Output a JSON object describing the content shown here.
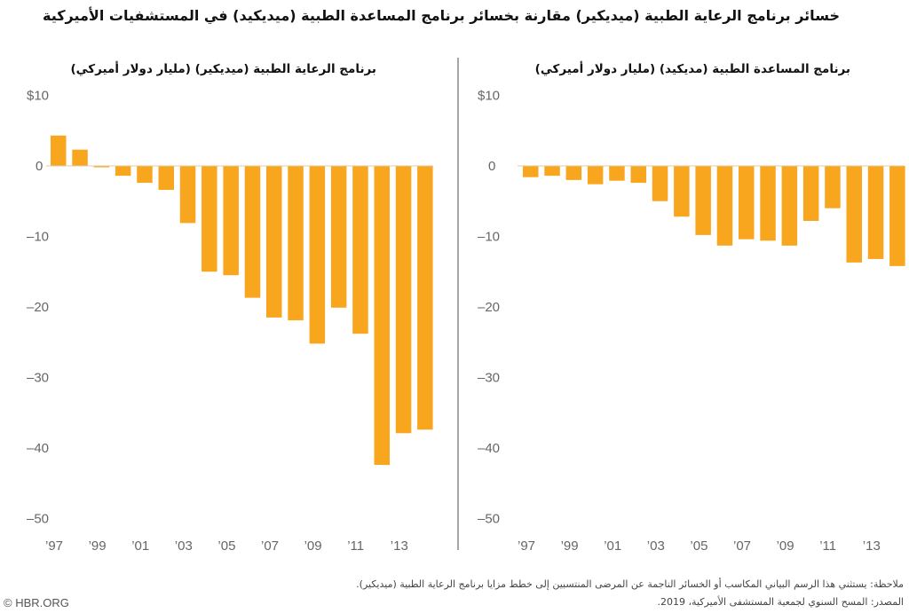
{
  "title": "خسائر برنامج الرعاية الطبية (ميديكير) مقارنة بخسائر برنامج المساعدة الطبية (ميديكيد) في المستشفيات الأميركية",
  "note": "ملاحظة: يستثني هذا الرسم البياني المكاسب أو الخسائر الناجمة عن المرضى المنتسبين إلى خطط مزايا برنامج الرعاية الطبية (ميديكير).",
  "source": "المصدر: المسح السنوي لجمعية المستشفى الأميركية، 2019.",
  "logo": "© HBR.ORG",
  "colors": {
    "bar": "#F9A61F",
    "divider": "#888888"
  },
  "chart_data": [
    {
      "type": "bar",
      "title": "برنامج الرعاية الطبية (ميديكير) (مليار دولار أميركي)",
      "categories": [
        "1997",
        "1998",
        "1999",
        "2000",
        "2001",
        "2002",
        "2003",
        "2004",
        "2005",
        "2006",
        "2007",
        "2008",
        "2009",
        "2010",
        "2011",
        "2012",
        "2013",
        "2014"
      ],
      "values": [
        4.3,
        2.3,
        -0.2,
        -1.4,
        -2.4,
        -3.4,
        -8.1,
        -15.0,
        -15.5,
        -18.7,
        -21.5,
        -21.9,
        -25.2,
        -20.1,
        -23.8,
        -42.4,
        -37.9,
        -37.4
      ],
      "xtick_labels": [
        "’97",
        "’99",
        "’01",
        "’03",
        "’05",
        "’07",
        "’09",
        "’11",
        "’13"
      ],
      "ytick_labels": [
        "$10",
        "0",
        "–10",
        "–20",
        "–30",
        "–40",
        "–50"
      ],
      "yticks": [
        10,
        0,
        -10,
        -20,
        -30,
        -40,
        -50
      ],
      "ylim": [
        -50,
        10
      ]
    },
    {
      "type": "bar",
      "title": "برنامج المساعدة الطبية (مديكيد) (مليار دولار أميركي)",
      "categories": [
        "1997",
        "1998",
        "1999",
        "2000",
        "2001",
        "2002",
        "2003",
        "2004",
        "2005",
        "2006",
        "2007",
        "2008",
        "2009",
        "2010",
        "2011",
        "2012",
        "2013",
        "2014"
      ],
      "values": [
        -1.6,
        -1.4,
        -2.0,
        -2.6,
        -2.1,
        -2.4,
        -5.0,
        -7.2,
        -9.8,
        -11.3,
        -10.4,
        -10.6,
        -11.3,
        -7.8,
        -6.0,
        -13.7,
        -13.2,
        -14.2
      ],
      "xtick_labels": [
        "’97",
        "’99",
        "’01",
        "’03",
        "’05",
        "’07",
        "’09",
        "’11",
        "’13"
      ],
      "ytick_labels": [
        "$10",
        "0",
        "–10",
        "–20",
        "–30",
        "–40",
        "–50"
      ],
      "yticks": [
        10,
        0,
        -10,
        -20,
        -30,
        -40,
        -50
      ],
      "ylim": [
        -50,
        10
      ]
    }
  ]
}
